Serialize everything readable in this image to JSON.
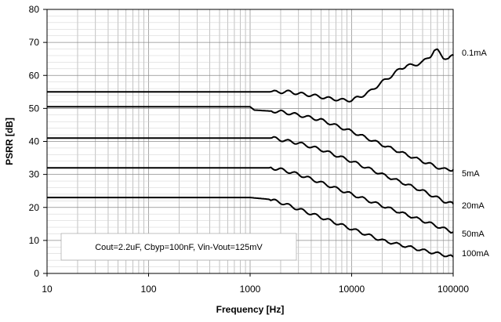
{
  "chart_data": {
    "type": "line",
    "title": "",
    "xlabel": "Frequency [Hz]",
    "ylabel": "PSRR [dB]",
    "xscale": "log",
    "xlim": [
      10,
      100000
    ],
    "ylim": [
      0,
      80
    ],
    "grid": true,
    "x_ticks": [
      "10",
      "100",
      "1000",
      "10000",
      "100000"
    ],
    "y_ticks": [
      "0",
      "10",
      "20",
      "30",
      "40",
      "50",
      "60",
      "70",
      "80"
    ],
    "annotation": "Cout=2.2uF, Cbyp=100nF, Vin-Vout=125mV",
    "series": [
      {
        "name": "0.1mA",
        "points": [
          [
            10,
            55
          ],
          [
            100,
            55
          ],
          [
            1000,
            55
          ],
          [
            2000,
            55
          ],
          [
            2500,
            55
          ],
          [
            3000,
            54.5
          ],
          [
            4000,
            54
          ],
          [
            5000,
            53.5
          ],
          [
            6000,
            53
          ],
          [
            7000,
            52.8
          ],
          [
            8000,
            52.5
          ],
          [
            10000,
            52.5
          ],
          [
            12000,
            53.5
          ],
          [
            15000,
            55
          ],
          [
            20000,
            58
          ],
          [
            25000,
            60
          ],
          [
            30000,
            62
          ],
          [
            35000,
            63
          ],
          [
            40000,
            63
          ],
          [
            50000,
            64
          ],
          [
            60000,
            66
          ],
          [
            65000,
            67.5
          ],
          [
            70000,
            67.5
          ],
          [
            80000,
            65.5
          ],
          [
            90000,
            65
          ],
          [
            100000,
            66
          ]
        ]
      },
      {
        "name": "5mA",
        "points": [
          [
            10,
            50.5
          ],
          [
            100,
            50.5
          ],
          [
            1000,
            50.5
          ],
          [
            1100,
            49.5
          ],
          [
            2000,
            49
          ],
          [
            3000,
            48
          ],
          [
            5000,
            46.5
          ],
          [
            10000,
            43
          ],
          [
            20000,
            39
          ],
          [
            50000,
            34
          ],
          [
            80000,
            31.5
          ],
          [
            100000,
            31.5
          ]
        ]
      },
      {
        "name": "20mA",
        "points": [
          [
            10,
            41
          ],
          [
            100,
            41
          ],
          [
            1000,
            41
          ],
          [
            1700,
            41
          ],
          [
            2000,
            40.5
          ],
          [
            3000,
            39.5
          ],
          [
            5000,
            37.5
          ],
          [
            10000,
            34
          ],
          [
            20000,
            30
          ],
          [
            50000,
            25
          ],
          [
            80000,
            22
          ],
          [
            100000,
            21
          ]
        ]
      },
      {
        "name": "50mA",
        "points": [
          [
            10,
            32
          ],
          [
            100,
            32
          ],
          [
            1000,
            32
          ],
          [
            1600,
            32
          ],
          [
            2000,
            31.5
          ],
          [
            3000,
            30
          ],
          [
            5000,
            27.5
          ],
          [
            10000,
            24
          ],
          [
            20000,
            20.5
          ],
          [
            50000,
            16
          ],
          [
            100000,
            12.5
          ]
        ]
      },
      {
        "name": "100mA",
        "points": [
          [
            10,
            23
          ],
          [
            100,
            23
          ],
          [
            1000,
            23
          ],
          [
            1500,
            22.5
          ],
          [
            2000,
            21.5
          ],
          [
            3000,
            19.5
          ],
          [
            5000,
            17
          ],
          [
            10000,
            13.5
          ],
          [
            20000,
            10
          ],
          [
            50000,
            7
          ],
          [
            100000,
            5
          ]
        ]
      }
    ]
  }
}
